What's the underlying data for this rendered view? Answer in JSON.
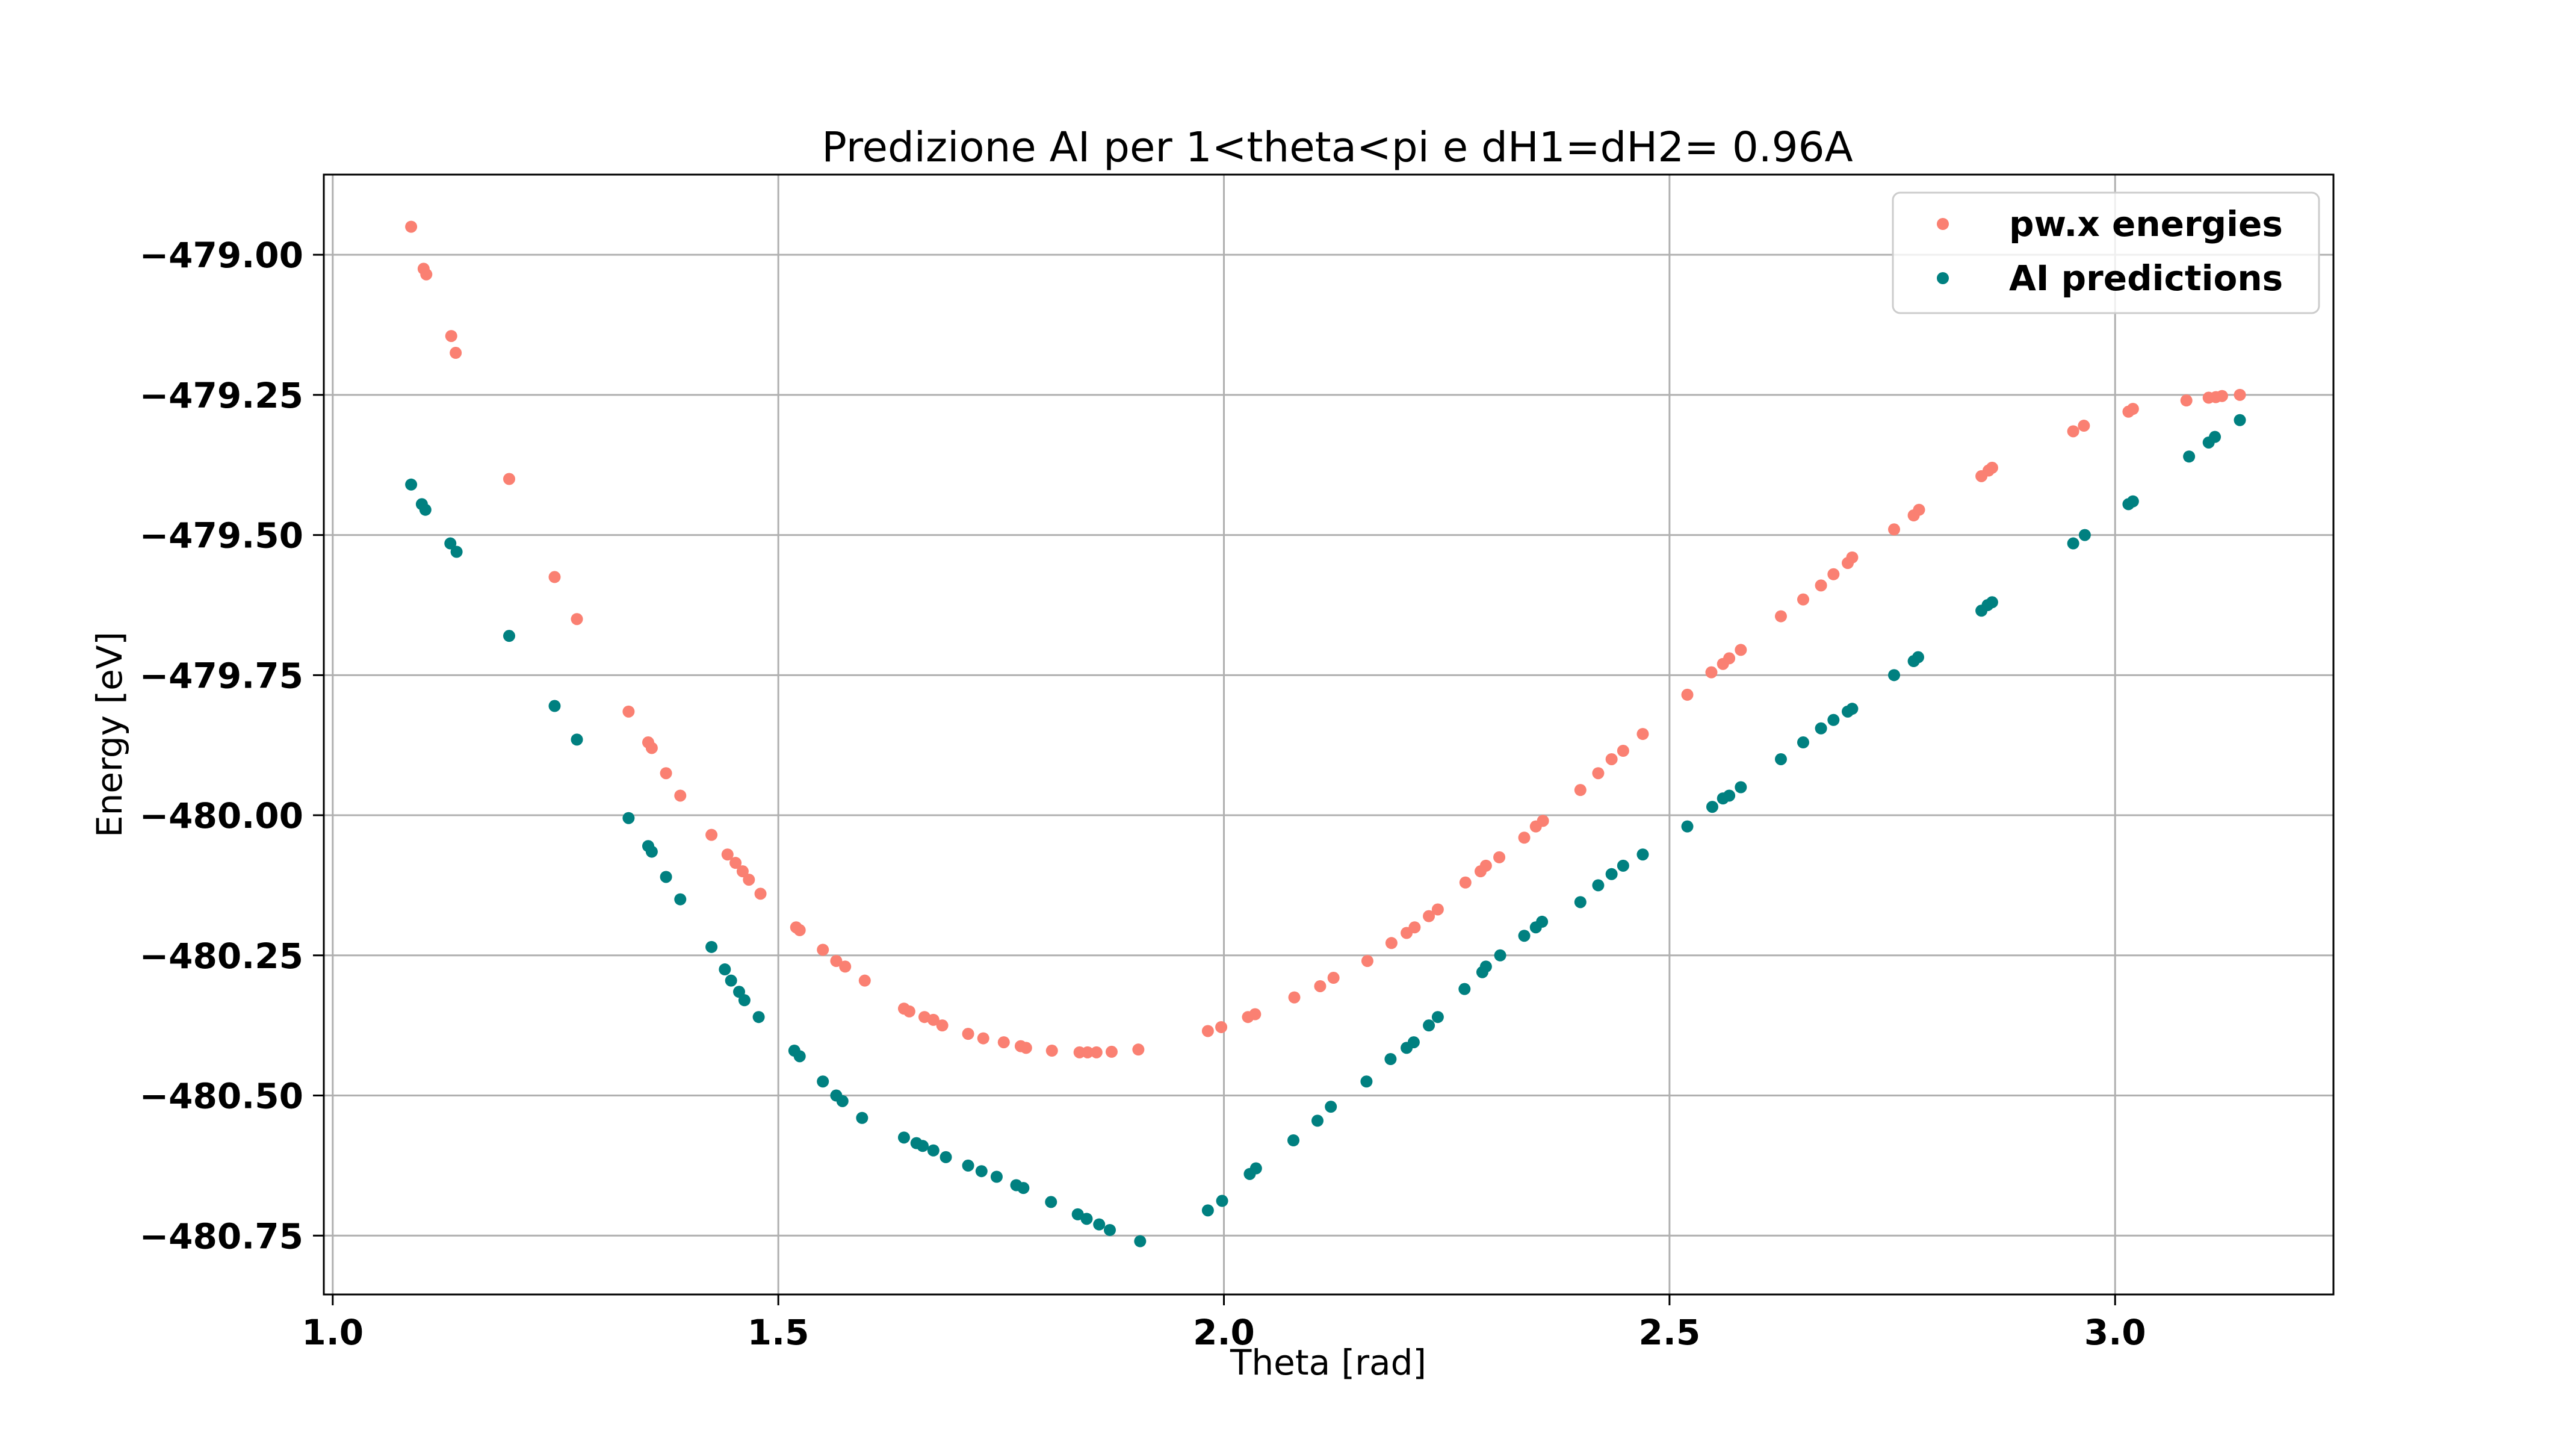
{
  "chart_data": {
    "type": "scatter",
    "title": "Predizione AI per 1<theta<pi e dH1=dH2= 0.96A",
    "xlabel": "Theta [rad]",
    "ylabel": "Energy [eV]",
    "xlim": [
      0.99,
      3.245
    ],
    "ylim": [
      -480.855,
      -478.857
    ],
    "xticks": [
      1.0,
      1.5,
      2.0,
      2.5,
      3.0
    ],
    "xtick_labels": [
      "1.0",
      "1.5",
      "2.0",
      "2.5",
      "3.0"
    ],
    "yticks": [
      -479.0,
      -479.25,
      -479.5,
      -479.75,
      -480.0,
      -480.25,
      -480.5,
      -480.75
    ],
    "ytick_labels": [
      "−479.00",
      "−479.25",
      "−479.50",
      "−479.75",
      "−480.00",
      "−480.25",
      "−480.50",
      "−480.75"
    ],
    "grid": true,
    "legend_position": "top-right",
    "series": [
      {
        "name": "pw.x energies",
        "color": "#fa8072",
        "points": [
          [
            1.088,
            -478.95
          ],
          [
            1.102,
            -479.025
          ],
          [
            1.105,
            -479.035
          ],
          [
            1.133,
            -479.145
          ],
          [
            1.138,
            -479.175
          ],
          [
            1.198,
            -479.4
          ],
          [
            1.249,
            -479.575
          ],
          [
            1.274,
            -479.65
          ],
          [
            1.332,
            -479.815
          ],
          [
            1.354,
            -479.87
          ],
          [
            1.358,
            -479.88
          ],
          [
            1.374,
            -479.925
          ],
          [
            1.39,
            -479.965
          ],
          [
            1.425,
            -480.035
          ],
          [
            1.443,
            -480.07
          ],
          [
            1.452,
            -480.085
          ],
          [
            1.46,
            -480.1
          ],
          [
            1.467,
            -480.115
          ],
          [
            1.48,
            -480.14
          ],
          [
            1.52,
            -480.2
          ],
          [
            1.524,
            -480.205
          ],
          [
            1.55,
            -480.24
          ],
          [
            1.565,
            -480.26
          ],
          [
            1.575,
            -480.27
          ],
          [
            1.597,
            -480.295
          ],
          [
            1.641,
            -480.345
          ],
          [
            1.647,
            -480.35
          ],
          [
            1.664,
            -480.36
          ],
          [
            1.674,
            -480.365
          ],
          [
            1.684,
            -480.375
          ],
          [
            1.713,
            -480.39
          ],
          [
            1.73,
            -480.398
          ],
          [
            1.753,
            -480.405
          ],
          [
            1.772,
            -480.412
          ],
          [
            1.778,
            -480.415
          ],
          [
            1.807,
            -480.42
          ],
          [
            1.838,
            -480.423
          ],
          [
            1.847,
            -480.423
          ],
          [
            1.857,
            -480.423
          ],
          [
            1.874,
            -480.422
          ],
          [
            1.904,
            -480.418
          ],
          [
            1.982,
            -480.385
          ],
          [
            1.997,
            -480.378
          ],
          [
            2.027,
            -480.36
          ],
          [
            2.035,
            -480.355
          ],
          [
            2.079,
            -480.325
          ],
          [
            2.108,
            -480.305
          ],
          [
            2.123,
            -480.29
          ],
          [
            2.161,
            -480.26
          ],
          [
            2.188,
            -480.228
          ],
          [
            2.205,
            -480.21
          ],
          [
            2.214,
            -480.2
          ],
          [
            2.23,
            -480.18
          ],
          [
            2.24,
            -480.168
          ],
          [
            2.271,
            -480.12
          ],
          [
            2.288,
            -480.1
          ],
          [
            2.294,
            -480.09
          ],
          [
            2.309,
            -480.075
          ],
          [
            2.337,
            -480.04
          ],
          [
            2.35,
            -480.02
          ],
          [
            2.358,
            -480.01
          ],
          [
            2.4,
            -479.955
          ],
          [
            2.42,
            -479.925
          ],
          [
            2.435,
            -479.9
          ],
          [
            2.448,
            -479.885
          ],
          [
            2.47,
            -479.855
          ],
          [
            2.52,
            -479.785
          ],
          [
            2.547,
            -479.745
          ],
          [
            2.56,
            -479.73
          ],
          [
            2.567,
            -479.72
          ],
          [
            2.58,
            -479.705
          ],
          [
            2.625,
            -479.645
          ],
          [
            2.65,
            -479.615
          ],
          [
            2.67,
            -479.59
          ],
          [
            2.684,
            -479.57
          ],
          [
            2.7,
            -479.55
          ],
          [
            2.705,
            -479.54
          ],
          [
            2.752,
            -479.49
          ],
          [
            2.774,
            -479.465
          ],
          [
            2.78,
            -479.455
          ],
          [
            2.85,
            -479.395
          ],
          [
            2.858,
            -479.385
          ],
          [
            2.862,
            -479.38
          ],
          [
            2.953,
            -479.315
          ],
          [
            2.965,
            -479.305
          ],
          [
            3.015,
            -479.28
          ],
          [
            3.02,
            -479.275
          ],
          [
            3.08,
            -479.26
          ],
          [
            3.105,
            -479.255
          ],
          [
            3.113,
            -479.254
          ],
          [
            3.12,
            -479.252
          ],
          [
            3.14,
            -479.25
          ]
        ]
      },
      {
        "name": "AI predictions",
        "color": "#008080",
        "points": [
          [
            1.088,
            -479.41
          ],
          [
            1.1,
            -479.445
          ],
          [
            1.104,
            -479.455
          ],
          [
            1.132,
            -479.515
          ],
          [
            1.139,
            -479.53
          ],
          [
            1.198,
            -479.68
          ],
          [
            1.249,
            -479.805
          ],
          [
            1.274,
            -479.865
          ],
          [
            1.332,
            -480.005
          ],
          [
            1.354,
            -480.055
          ],
          [
            1.358,
            -480.065
          ],
          [
            1.374,
            -480.11
          ],
          [
            1.39,
            -480.15
          ],
          [
            1.425,
            -480.235
          ],
          [
            1.44,
            -480.275
          ],
          [
            1.447,
            -480.295
          ],
          [
            1.456,
            -480.315
          ],
          [
            1.462,
            -480.33
          ],
          [
            1.478,
            -480.36
          ],
          [
            1.518,
            -480.42
          ],
          [
            1.524,
            -480.43
          ],
          [
            1.55,
            -480.475
          ],
          [
            1.565,
            -480.5
          ],
          [
            1.572,
            -480.51
          ],
          [
            1.594,
            -480.54
          ],
          [
            1.641,
            -480.575
          ],
          [
            1.655,
            -480.585
          ],
          [
            1.662,
            -480.59
          ],
          [
            1.674,
            -480.598
          ],
          [
            1.688,
            -480.61
          ],
          [
            1.713,
            -480.625
          ],
          [
            1.728,
            -480.635
          ],
          [
            1.745,
            -480.645
          ],
          [
            1.767,
            -480.66
          ],
          [
            1.775,
            -480.665
          ],
          [
            1.806,
            -480.69
          ],
          [
            1.836,
            -480.712
          ],
          [
            1.846,
            -480.72
          ],
          [
            1.86,
            -480.73
          ],
          [
            1.872,
            -480.74
          ],
          [
            1.906,
            -480.76
          ],
          [
            1.982,
            -480.705
          ],
          [
            1.998,
            -480.688
          ],
          [
            2.029,
            -480.64
          ],
          [
            2.036,
            -480.63
          ],
          [
            2.078,
            -480.58
          ],
          [
            2.105,
            -480.545
          ],
          [
            2.12,
            -480.52
          ],
          [
            2.16,
            -480.475
          ],
          [
            2.187,
            -480.435
          ],
          [
            2.205,
            -480.415
          ],
          [
            2.213,
            -480.405
          ],
          [
            2.23,
            -480.375
          ],
          [
            2.24,
            -480.36
          ],
          [
            2.27,
            -480.31
          ],
          [
            2.29,
            -480.28
          ],
          [
            2.294,
            -480.27
          ],
          [
            2.31,
            -480.25
          ],
          [
            2.337,
            -480.215
          ],
          [
            2.35,
            -480.2
          ],
          [
            2.357,
            -480.19
          ],
          [
            2.4,
            -480.155
          ],
          [
            2.42,
            -480.125
          ],
          [
            2.435,
            -480.105
          ],
          [
            2.448,
            -480.09
          ],
          [
            2.47,
            -480.07
          ],
          [
            2.52,
            -480.02
          ],
          [
            2.548,
            -479.985
          ],
          [
            2.56,
            -479.97
          ],
          [
            2.567,
            -479.965
          ],
          [
            2.58,
            -479.95
          ],
          [
            2.625,
            -479.9
          ],
          [
            2.65,
            -479.87
          ],
          [
            2.67,
            -479.845
          ],
          [
            2.684,
            -479.83
          ],
          [
            2.7,
            -479.815
          ],
          [
            2.705,
            -479.81
          ],
          [
            2.752,
            -479.75
          ],
          [
            2.774,
            -479.725
          ],
          [
            2.779,
            -479.718
          ],
          [
            2.85,
            -479.635
          ],
          [
            2.857,
            -479.625
          ],
          [
            2.862,
            -479.62
          ],
          [
            2.953,
            -479.515
          ],
          [
            2.966,
            -479.5
          ],
          [
            3.015,
            -479.445
          ],
          [
            3.02,
            -479.44
          ],
          [
            3.083,
            -479.36
          ],
          [
            3.105,
            -479.335
          ],
          [
            3.112,
            -479.325
          ],
          [
            3.14,
            -479.295
          ]
        ]
      }
    ]
  }
}
